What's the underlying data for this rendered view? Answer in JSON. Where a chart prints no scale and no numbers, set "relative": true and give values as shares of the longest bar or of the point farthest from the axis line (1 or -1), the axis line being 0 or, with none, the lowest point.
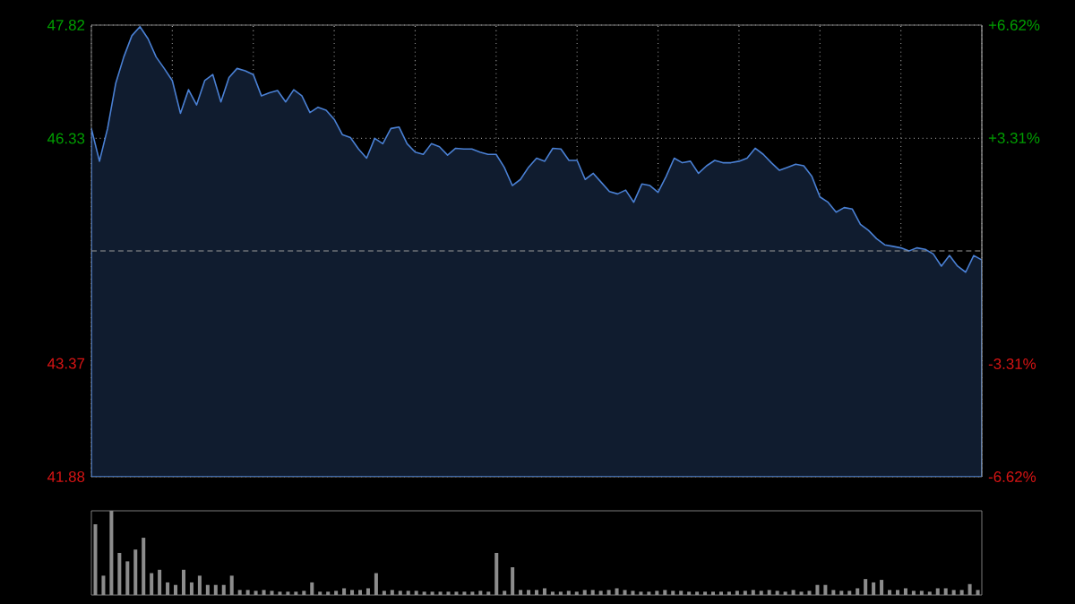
{
  "chart_data": [
    {
      "type": "area",
      "color": "#4a80d4",
      "grid": true,
      "tick_labels": "y",
      "categories": [
        null,
        null,
        null,
        null,
        null,
        null,
        null,
        null,
        null,
        null,
        null,
        null,
        null,
        null,
        null,
        null,
        null,
        null,
        null,
        null,
        null,
        null,
        null,
        null,
        null,
        null,
        null,
        null,
        null,
        null,
        null,
        null,
        null,
        null,
        null,
        null,
        null,
        null,
        null,
        null,
        null,
        null,
        null,
        null,
        null,
        null,
        null,
        null,
        null,
        null,
        null,
        null,
        null,
        null,
        null,
        null,
        null,
        null,
        null,
        null,
        null,
        null,
        null,
        null,
        null,
        null,
        null,
        null,
        null,
        null,
        null,
        null,
        null,
        null,
        null,
        null,
        null,
        null,
        null,
        null,
        null,
        null,
        null,
        null,
        null,
        null,
        null,
        null,
        null,
        null,
        null,
        null,
        null,
        null,
        null,
        null,
        null,
        null,
        null,
        null,
        null,
        null,
        null,
        null,
        null,
        null,
        null,
        null,
        null,
        null,
        null
      ],
      "values": [
        46.46,
        46.03,
        46.46,
        47.05,
        47.4,
        47.68,
        47.8,
        47.64,
        47.4,
        47.25,
        47.09,
        46.66,
        46.97,
        46.77,
        47.09,
        47.17,
        46.81,
        47.13,
        47.25,
        47.22,
        47.17,
        46.89,
        46.93,
        46.96,
        46.81,
        46.97,
        46.89,
        46.67,
        46.74,
        46.7,
        46.58,
        46.38,
        46.34,
        46.19,
        46.07,
        46.33,
        46.26,
        46.46,
        46.48,
        46.26,
        46.15,
        46.12,
        46.26,
        46.22,
        46.11,
        46.2,
        46.19,
        46.19,
        46.15,
        46.12,
        46.12,
        45.95,
        45.71,
        45.79,
        45.95,
        46.07,
        46.03,
        46.2,
        46.19,
        46.04,
        46.04,
        45.79,
        45.87,
        45.75,
        45.63,
        45.6,
        45.65,
        45.49,
        45.73,
        45.71,
        45.62,
        45.83,
        46.07,
        46.01,
        46.03,
        45.87,
        45.97,
        46.04,
        46.01,
        46.01,
        46.03,
        46.07,
        46.2,
        46.12,
        46.01,
        45.91,
        45.95,
        45.99,
        45.97,
        45.83,
        45.56,
        45.49,
        45.36,
        45.42,
        45.4,
        45.2,
        45.12,
        45.01,
        44.93,
        44.91,
        44.89,
        44.85,
        44.89,
        44.87,
        44.81,
        44.65,
        44.79,
        44.65,
        44.57,
        44.79,
        44.73
      ],
      "ylim": [
        41.88,
        47.82
      ],
      "yticks": [
        41.88,
        43.37,
        46.33,
        47.82
      ],
      "y2lim": [
        -6.62,
        6.62
      ],
      "y2ticks": [
        {
          "value": -6.62,
          "label": "-6.62%"
        },
        {
          "value": -3.31,
          "label": "-3.31%"
        },
        {
          "value": 3.31,
          "label": "+3.31%"
        },
        {
          "value": 6.62,
          "label": "+6.62%"
        }
      ],
      "ref_lines": [
        {
          "axis": "y",
          "value": 44.85,
          "line_style": "dashed"
        }
      ]
    },
    {
      "type": "bar",
      "relative": true,
      "color": "#8c8c8c",
      "tick_labels": false,
      "categories": [
        null,
        null,
        null,
        null,
        null,
        null,
        null,
        null,
        null,
        null,
        null,
        null,
        null,
        null,
        null,
        null,
        null,
        null,
        null,
        null,
        null,
        null,
        null,
        null,
        null,
        null,
        null,
        null,
        null,
        null,
        null,
        null,
        null,
        null,
        null,
        null,
        null,
        null,
        null,
        null,
        null,
        null,
        null,
        null,
        null,
        null,
        null,
        null,
        null,
        null,
        null,
        null,
        null,
        null,
        null,
        null,
        null,
        null,
        null,
        null,
        null,
        null,
        null,
        null,
        null,
        null,
        null,
        null,
        null,
        null,
        null,
        null,
        null,
        null,
        null,
        null,
        null,
        null,
        null,
        null,
        null,
        null,
        null,
        null,
        null,
        null,
        null,
        null,
        null,
        null,
        null,
        null,
        null,
        null,
        null,
        null,
        null,
        null,
        null,
        null,
        null,
        null,
        null,
        null,
        null,
        null,
        null,
        null,
        null,
        null,
        null
      ],
      "values": [
        0.84,
        0.23,
        1.0,
        0.5,
        0.4,
        0.54,
        0.68,
        0.26,
        0.3,
        0.15,
        0.12,
        0.3,
        0.15,
        0.23,
        0.12,
        0.12,
        0.12,
        0.23,
        0.06,
        0.06,
        0.05,
        0.06,
        0.05,
        0.04,
        0.04,
        0.04,
        0.05,
        0.15,
        0.04,
        0.04,
        0.05,
        0.08,
        0.06,
        0.06,
        0.08,
        0.26,
        0.05,
        0.06,
        0.05,
        0.05,
        0.05,
        0.04,
        0.04,
        0.04,
        0.04,
        0.04,
        0.04,
        0.04,
        0.05,
        0.04,
        0.5,
        0.05,
        0.33,
        0.06,
        0.06,
        0.06,
        0.08,
        0.04,
        0.04,
        0.05,
        0.04,
        0.06,
        0.06,
        0.05,
        0.06,
        0.08,
        0.06,
        0.05,
        0.04,
        0.04,
        0.05,
        0.06,
        0.05,
        0.05,
        0.04,
        0.04,
        0.04,
        0.04,
        0.04,
        0.04,
        0.05,
        0.05,
        0.06,
        0.05,
        0.06,
        0.05,
        0.04,
        0.06,
        0.04,
        0.05,
        0.12,
        0.12,
        0.06,
        0.05,
        0.05,
        0.08,
        0.19,
        0.15,
        0.18,
        0.06,
        0.06,
        0.08,
        0.05,
        0.05,
        0.04,
        0.08,
        0.08,
        0.06,
        0.06,
        0.13,
        0.06
      ]
    }
  ]
}
